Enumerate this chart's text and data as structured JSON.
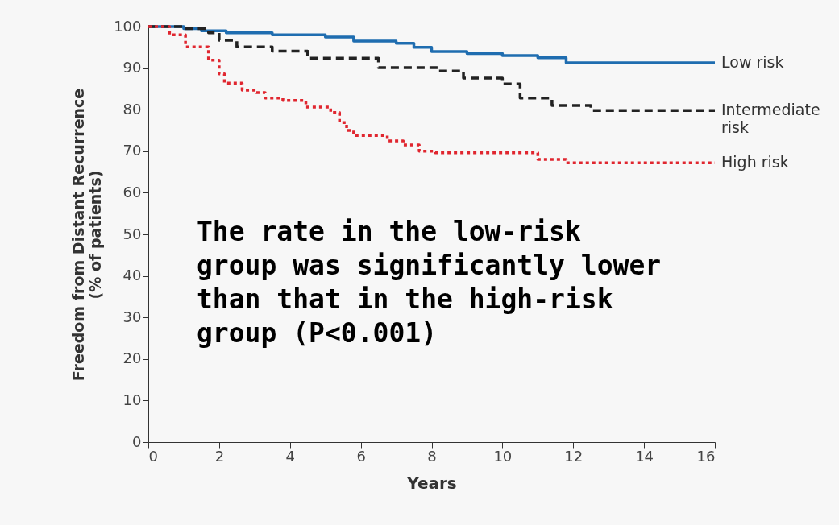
{
  "chart_data": {
    "type": "step",
    "xlabel": "Years",
    "ylabel": "Freedom from Distant Recurrence (% of patients)",
    "xlim": [
      0,
      16
    ],
    "xticks": [
      0,
      2,
      4,
      6,
      8,
      10,
      12,
      14,
      16
    ],
    "ylim": [
      0,
      100
    ],
    "yticks": [
      0,
      10,
      20,
      30,
      40,
      50,
      60,
      70,
      80,
      90,
      100
    ],
    "grid": false,
    "legend": false,
    "marker": "none",
    "annotations": [
      "The rate in the low-risk group was significantly lower than that in the high-risk group (P<0.001)"
    ],
    "series": [
      {
        "name": "Low risk",
        "color": "#1f6db0",
        "line_style": "solid",
        "x": [
          0,
          1.0,
          1.5,
          2.2,
          3.5,
          5.0,
          5.8,
          7.0,
          7.5,
          8.0,
          9.0,
          10.0,
          11.0,
          11.8,
          16
        ],
        "values": [
          100,
          99.5,
          99,
          98.5,
          98,
          97.5,
          96.5,
          96,
          95,
          94,
          93.5,
          93,
          92.5,
          91.3,
          91.3
        ]
      },
      {
        "name": "Intermediate risk",
        "color": "#222222",
        "line_style": "dashed",
        "x": [
          0,
          1.0,
          1.7,
          2.0,
          2.5,
          3.5,
          4.5,
          6.5,
          8.2,
          8.9,
          10.0,
          10.5,
          11.4,
          12.5,
          16
        ],
        "values": [
          100,
          99.5,
          98.5,
          96.7,
          95.1,
          94.1,
          92.4,
          90.1,
          89.3,
          87.6,
          86.2,
          82.8,
          81,
          79.8,
          79.8
        ]
      },
      {
        "name": "High risk",
        "color": "#e0262f",
        "line_style": "dotted",
        "x": [
          0,
          0.6,
          1.05,
          1.7,
          2.0,
          2.15,
          2.65,
          3.05,
          3.3,
          3.8,
          4.45,
          5.15,
          5.4,
          5.6,
          5.8,
          6.75,
          7.2,
          7.65,
          8.1,
          11.0,
          11.8,
          16
        ],
        "values": [
          100,
          98,
          95.1,
          91.9,
          88.6,
          86.4,
          84.7,
          84.1,
          82.8,
          82.2,
          80.6,
          79.3,
          76.9,
          75,
          73.8,
          72.5,
          71.5,
          70,
          69.6,
          68,
          67.2,
          67.2
        ]
      }
    ]
  }
}
